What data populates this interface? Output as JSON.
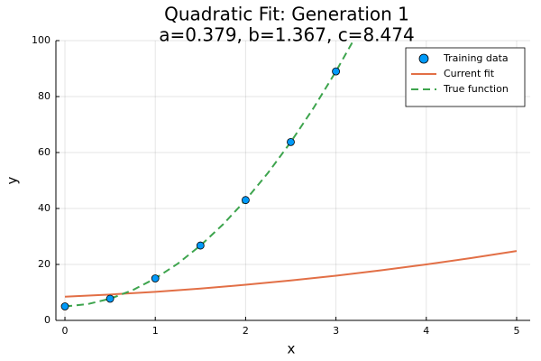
{
  "chart_data": {
    "type": "line",
    "title": "Quadratic Fit: Generation 1",
    "subtitle": "a=0.379, b=1.367, c=8.474",
    "x_label": "x",
    "y_label": "y",
    "xlim": [
      -0.1,
      5.15
    ],
    "ylim": [
      0,
      100
    ],
    "xticks": [
      0,
      1,
      2,
      3,
      4,
      5
    ],
    "yticks": [
      0,
      20,
      40,
      60,
      80,
      100
    ],
    "grid": true,
    "legend": "top-right",
    "series": [
      {
        "name": "Training data",
        "kind": "scatter",
        "color": "#009af9",
        "x": [
          0,
          0.5,
          1,
          1.5,
          2,
          2.5,
          3
        ],
        "values": [
          5,
          7.75,
          15,
          26.75,
          43,
          63.75,
          89
        ]
      },
      {
        "name": "Current fit",
        "kind": "line",
        "dashed": false,
        "color": "#e26f46",
        "x": [
          0,
          0.5,
          1,
          1.5,
          2,
          2.5,
          3,
          3.5,
          4,
          4.5,
          5
        ],
        "values": [
          8.474,
          9.252,
          10.22,
          11.377,
          12.724,
          14.26,
          15.986,
          17.901,
          20.006,
          22.3,
          24.784
        ]
      },
      {
        "name": "True function",
        "kind": "line",
        "dashed": true,
        "color": "#3da44d",
        "x": [
          0,
          0.25,
          0.5,
          0.75,
          1,
          1.25,
          1.5,
          1.75,
          2,
          2.25,
          2.5,
          2.75,
          3,
          3.25,
          3.5
        ],
        "values": [
          5,
          5.8125,
          7.75,
          10.8125,
          15,
          20.3125,
          26.75,
          34.3125,
          43,
          52.8125,
          63.75,
          75.8125,
          89,
          103.3125,
          118.75
        ]
      }
    ]
  }
}
